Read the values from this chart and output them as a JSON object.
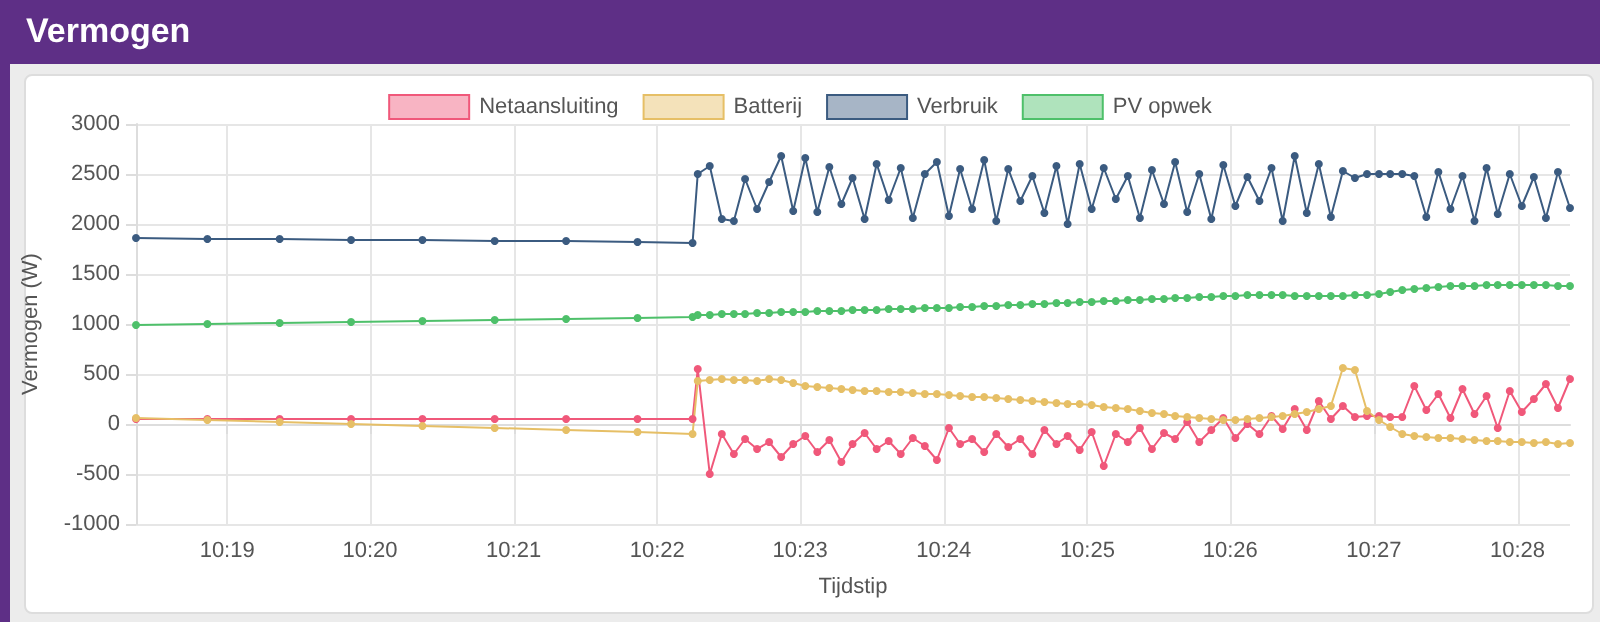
{
  "chart_data": {
    "type": "line",
    "title": "Vermogen",
    "xlabel": "Tijdstip",
    "ylabel": "Vermogen (W)",
    "x": [
      10.3061,
      10.3144,
      10.3228,
      10.3311,
      10.3394,
      10.3478,
      10.3561,
      10.3644,
      10.3708,
      10.3714,
      10.3728,
      10.3742,
      10.3756,
      10.3769,
      10.3783,
      10.3797,
      10.3811,
      10.3825,
      10.3839,
      10.3853,
      10.3867,
      10.3881,
      10.3894,
      10.3908,
      10.3922,
      10.3936,
      10.395,
      10.3964,
      10.3978,
      10.3992,
      10.4006,
      10.4019,
      10.4033,
      10.4047,
      10.4061,
      10.4075,
      10.4089,
      10.4103,
      10.4117,
      10.4131,
      10.4144,
      10.4158,
      10.4172,
      10.4186,
      10.42,
      10.4214,
      10.4228,
      10.4242,
      10.4256,
      10.4269,
      10.4283,
      10.4297,
      10.4311,
      10.4325,
      10.4339,
      10.4353,
      10.4367,
      10.4381,
      10.4394,
      10.4408,
      10.4422,
      10.4436,
      10.445,
      10.4464,
      10.4478,
      10.4492,
      10.4506,
      10.4519,
      10.4533,
      10.4547,
      10.4561,
      10.4575,
      10.4589,
      10.4603,
      10.4617,
      10.4631,
      10.4644,
      10.4658,
      10.4672,
      10.4686,
      10.47,
      10.4714,
      10.4728
    ],
    "series": [
      {
        "name": "Netaansluiting",
        "color": "#f0587a",
        "values": [
          50,
          50,
          50,
          50,
          50,
          50,
          50,
          50,
          50,
          550,
          -500,
          -100,
          -300,
          -150,
          -250,
          -180,
          -330,
          -200,
          -120,
          -280,
          -160,
          -380,
          -200,
          -90,
          -250,
          -170,
          -300,
          -140,
          -220,
          -360,
          -40,
          -200,
          -150,
          -280,
          -100,
          -230,
          -150,
          -300,
          -60,
          -200,
          -120,
          -260,
          -80,
          -420,
          -100,
          -180,
          -40,
          -250,
          -90,
          -150,
          20,
          -180,
          -60,
          60,
          -140,
          0,
          -100,
          80,
          -50,
          150,
          -60,
          230,
          50,
          180,
          70,
          80,
          80,
          70,
          70,
          380,
          140,
          300,
          60,
          350,
          100,
          280,
          -40,
          330,
          120,
          250,
          400,
          160,
          450
        ]
      },
      {
        "name": "Batterij",
        "color": "#e6bf66",
        "values": [
          60,
          40,
          20,
          0,
          -20,
          -40,
          -60,
          -80,
          -100,
          430,
          440,
          450,
          440,
          440,
          430,
          450,
          440,
          410,
          380,
          370,
          360,
          350,
          340,
          330,
          330,
          320,
          320,
          310,
          300,
          300,
          290,
          280,
          270,
          270,
          260,
          250,
          240,
          230,
          220,
          210,
          200,
          200,
          190,
          170,
          160,
          150,
          130,
          110,
          100,
          80,
          70,
          60,
          50,
          40,
          40,
          50,
          60,
          70,
          80,
          100,
          120,
          150,
          180,
          560,
          540,
          130,
          40,
          -30,
          -100,
          -120,
          -130,
          -140,
          -140,
          -150,
          -160,
          -170,
          -170,
          -180,
          -180,
          -190,
          -180,
          -200,
          -190
        ]
      },
      {
        "name": "Verbruik",
        "color": "#3b5b80",
        "values": [
          1860,
          1850,
          1850,
          1840,
          1840,
          1830,
          1830,
          1820,
          1810,
          2500,
          2580,
          2050,
          2030,
          2450,
          2150,
          2420,
          2680,
          2130,
          2660,
          2120,
          2570,
          2200,
          2460,
          2050,
          2600,
          2240,
          2560,
          2060,
          2500,
          2620,
          2080,
          2550,
          2150,
          2640,
          2030,
          2550,
          2230,
          2480,
          2110,
          2580,
          2000,
          2600,
          2150,
          2560,
          2250,
          2480,
          2060,
          2540,
          2200,
          2620,
          2120,
          2500,
          2050,
          2590,
          2180,
          2470,
          2230,
          2560,
          2030,
          2680,
          2110,
          2600,
          2070,
          2530,
          2460,
          2500,
          2500,
          2500,
          2500,
          2480,
          2070,
          2520,
          2150,
          2480,
          2030,
          2560,
          2100,
          2500,
          2180,
          2470,
          2060,
          2520,
          2160
        ]
      },
      {
        "name": "PV opwek",
        "color": "#4ec06a",
        "values": [
          990,
          1000,
          1010,
          1020,
          1030,
          1040,
          1050,
          1060,
          1070,
          1090,
          1090,
          1100,
          1100,
          1100,
          1110,
          1110,
          1120,
          1120,
          1120,
          1130,
          1130,
          1130,
          1140,
          1140,
          1140,
          1150,
          1150,
          1150,
          1160,
          1160,
          1160,
          1170,
          1170,
          1180,
          1180,
          1190,
          1190,
          1200,
          1200,
          1210,
          1210,
          1220,
          1220,
          1230,
          1230,
          1240,
          1240,
          1250,
          1250,
          1260,
          1260,
          1270,
          1270,
          1280,
          1280,
          1290,
          1290,
          1290,
          1290,
          1280,
          1280,
          1280,
          1280,
          1280,
          1290,
          1290,
          1300,
          1320,
          1340,
          1350,
          1360,
          1370,
          1380,
          1380,
          1380,
          1390,
          1390,
          1390,
          1390,
          1390,
          1390,
          1380,
          1380
        ]
      }
    ],
    "xlim": [
      10.3061,
      10.4728
    ],
    "xticks": [
      {
        "value": 10.3167,
        "label": "10:19"
      },
      {
        "value": 10.3333,
        "label": "10:20"
      },
      {
        "value": 10.35,
        "label": "10:21"
      },
      {
        "value": 10.3667,
        "label": "10:22"
      },
      {
        "value": 10.3833,
        "label": "10:23"
      },
      {
        "value": 10.4,
        "label": "10:24"
      },
      {
        "value": 10.4167,
        "label": "10:25"
      },
      {
        "value": 10.4333,
        "label": "10:26"
      },
      {
        "value": 10.45,
        "label": "10:27"
      },
      {
        "value": 10.4667,
        "label": "10:28"
      }
    ],
    "ylim": [
      -1000,
      3000
    ],
    "yticks": [
      -1000,
      -500,
      0,
      500,
      1000,
      1500,
      2000,
      2500,
      3000
    ],
    "grid": true,
    "legend": "top",
    "marker": "circle",
    "line_style": "solid"
  }
}
